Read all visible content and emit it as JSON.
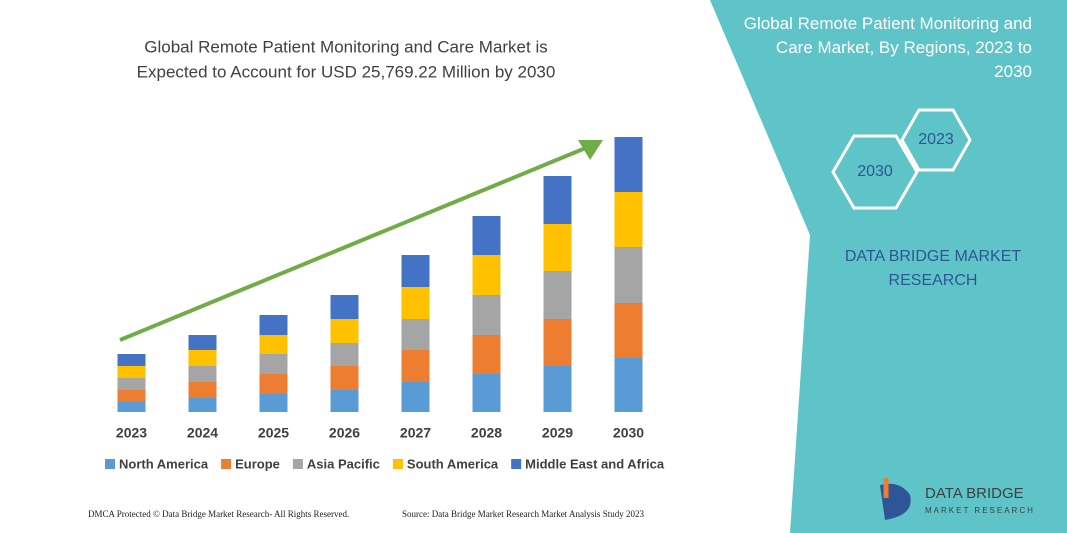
{
  "chart_data": {
    "type": "bar",
    "stacked": true,
    "title": [
      "Global Remote Patient Monitoring and Care Market is",
      "Expected to Account for USD 25,769.22 Million by 2030"
    ],
    "categories": [
      "2023",
      "2024",
      "2025",
      "2026",
      "2027",
      "2028",
      "2029",
      "2030"
    ],
    "series": [
      {
        "name": "North America",
        "color": "#5b9bd5",
        "values": [
          10,
          14,
          18,
          22,
          30,
          38,
          46,
          54
        ]
      },
      {
        "name": "Europe",
        "color": "#ed7d31",
        "values": [
          12,
          16,
          20,
          24,
          32,
          39,
          47,
          55
        ]
      },
      {
        "name": "Asia Pacific",
        "color": "#a5a5a5",
        "values": [
          12,
          16,
          20,
          23,
          31,
          40,
          48,
          56
        ]
      },
      {
        "name": "South America",
        "color": "#ffc000",
        "values": [
          12,
          16,
          19,
          24,
          32,
          40,
          47,
          55
        ]
      },
      {
        "name": "Middle East and Africa",
        "color": "#4472c4",
        "values": [
          12,
          15,
          20,
          24,
          32,
          39,
          48,
          55
        ]
      }
    ]
  },
  "panel": {
    "title": "Global Remote Patient Monitoring and Care Market, By Regions, 2023 to 2030",
    "hexagons": [
      "2030",
      "2023"
    ],
    "brand": "DATA BRIDGE MARKET RESEARCH"
  },
  "logo": {
    "name": "DATA BRIDGE",
    "tagline": "MARKET RESEARCH"
  },
  "footer": {
    "left": "DMCA Protected © Data Bridge Market Research- All Rights Reserved.",
    "right": "Source: Data Bridge Market Research Market Analysis Study 2023"
  }
}
